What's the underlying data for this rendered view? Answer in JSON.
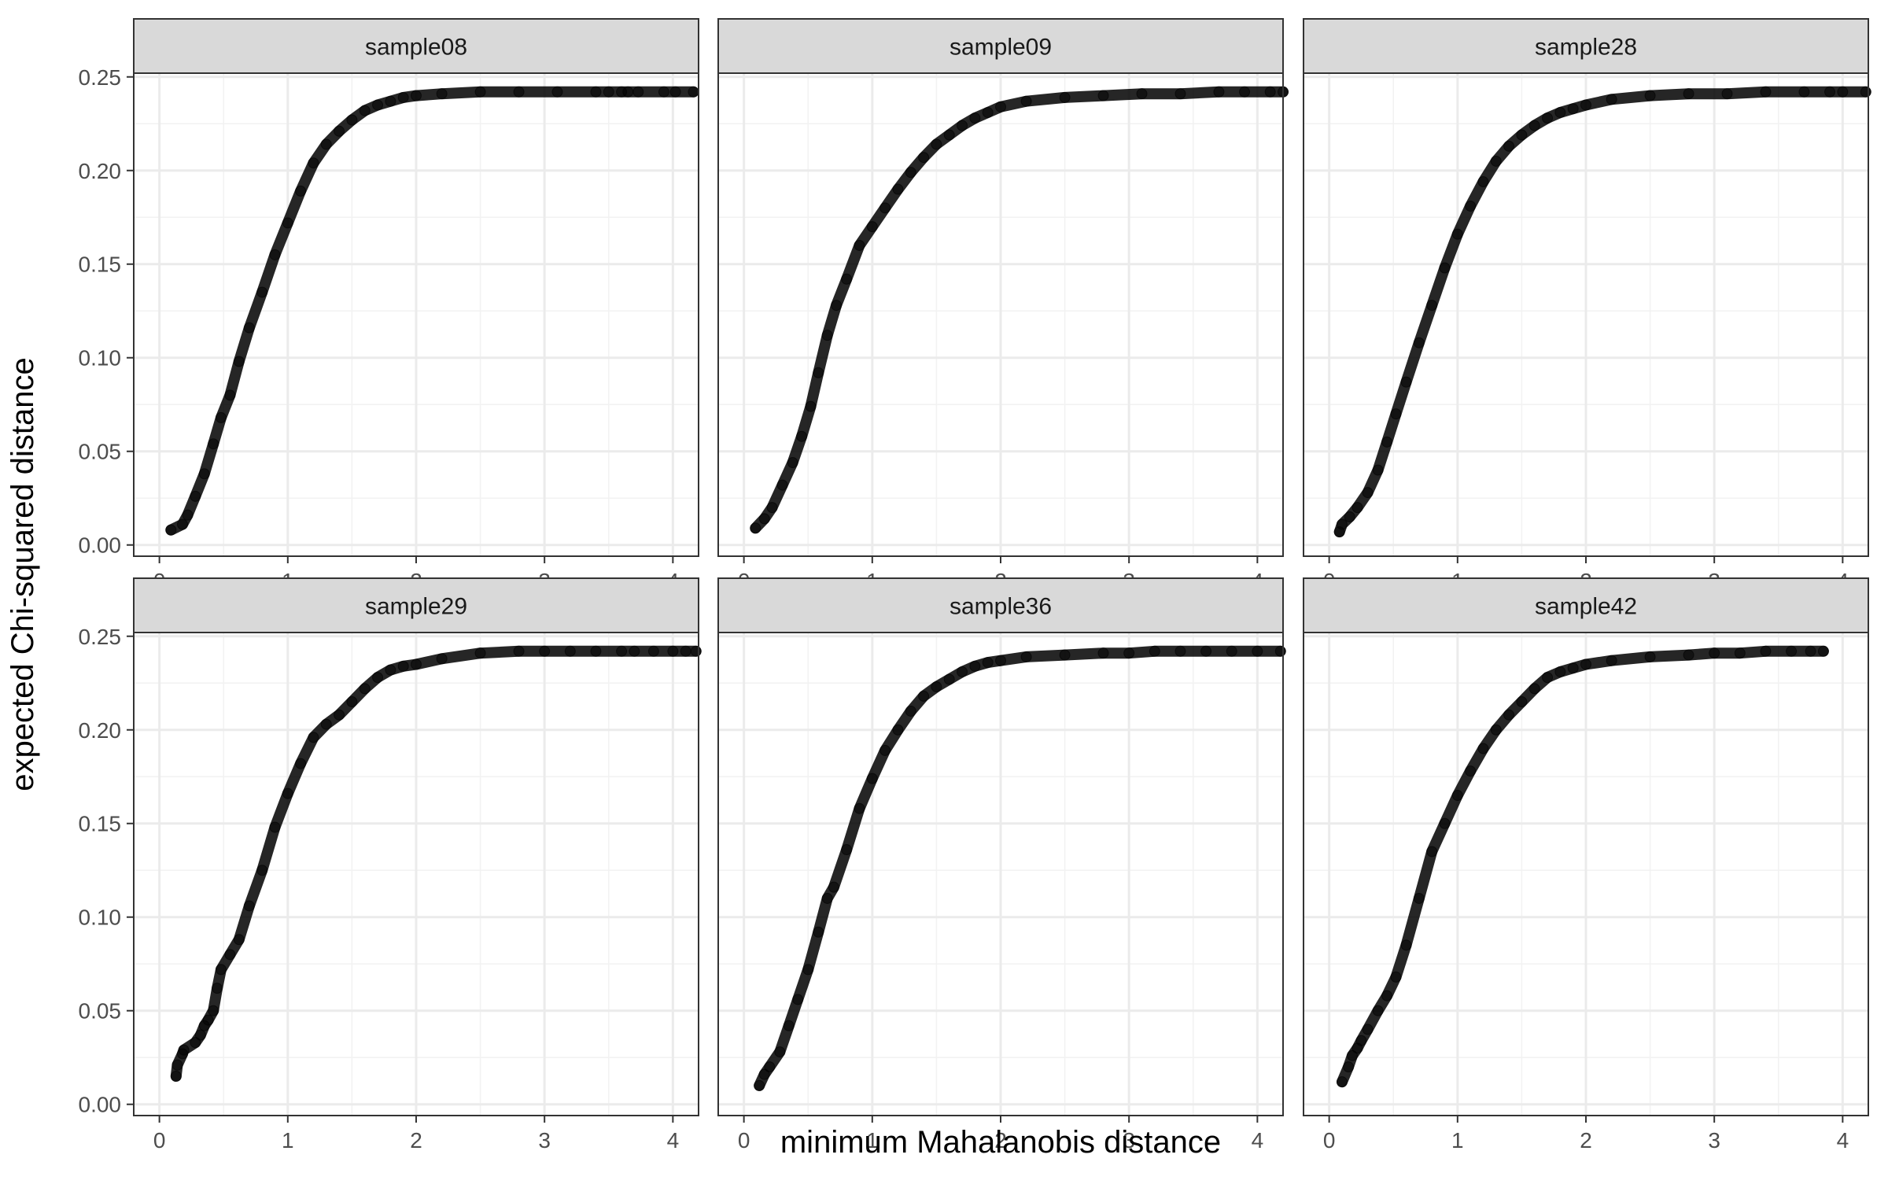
{
  "chart_data": {
    "type": "scatter",
    "layout": "facet-grid 2 rows x 3 columns",
    "xlabel": "minimum Mahalanobis distance",
    "ylabel": "expected Chi-squared distance",
    "xlim": [
      -0.2,
      4.2
    ],
    "ylim": [
      -0.006,
      0.252
    ],
    "x_ticks": [
      0,
      1,
      2,
      3,
      4
    ],
    "y_ticks": [
      0.0,
      0.05,
      0.1,
      0.15,
      0.2,
      0.25
    ],
    "x_tick_labels": [
      "0",
      "1",
      "2",
      "3",
      "4"
    ],
    "y_tick_labels": [
      "0.00",
      "0.05",
      "0.10",
      "0.15",
      "0.20",
      "0.25"
    ],
    "grid": true,
    "theme": "black-and-white with grey facet strips",
    "point_color": "#000000",
    "point_alpha": 0.5,
    "strip_fill": "#d9d9d9",
    "panels": [
      {
        "name": "sample08",
        "points": [
          [
            0.09,
            0.008
          ],
          [
            0.18,
            0.011
          ],
          [
            0.22,
            0.016
          ],
          [
            0.28,
            0.026
          ],
          [
            0.35,
            0.038
          ],
          [
            0.42,
            0.054
          ],
          [
            0.48,
            0.068
          ],
          [
            0.55,
            0.08
          ],
          [
            0.62,
            0.098
          ],
          [
            0.7,
            0.116
          ],
          [
            0.8,
            0.135
          ],
          [
            0.9,
            0.155
          ],
          [
            1.0,
            0.172
          ],
          [
            1.1,
            0.189
          ],
          [
            1.2,
            0.204
          ],
          [
            1.3,
            0.214
          ],
          [
            1.4,
            0.221
          ],
          [
            1.5,
            0.227
          ],
          [
            1.6,
            0.232
          ],
          [
            1.7,
            0.235
          ],
          [
            1.8,
            0.237
          ],
          [
            1.9,
            0.239
          ],
          [
            2.0,
            0.24
          ],
          [
            2.2,
            0.241
          ],
          [
            2.5,
            0.242
          ],
          [
            2.8,
            0.242
          ],
          [
            3.1,
            0.242
          ],
          [
            3.4,
            0.242
          ],
          [
            3.5,
            0.242
          ],
          [
            3.6,
            0.242
          ],
          [
            3.65,
            0.242
          ],
          [
            3.73,
            0.242
          ],
          [
            3.93,
            0.242
          ],
          [
            4.02,
            0.242
          ],
          [
            4.16,
            0.242
          ]
        ]
      },
      {
        "name": "sample09",
        "points": [
          [
            0.09,
            0.009
          ],
          [
            0.16,
            0.014
          ],
          [
            0.22,
            0.02
          ],
          [
            0.3,
            0.032
          ],
          [
            0.38,
            0.044
          ],
          [
            0.45,
            0.058
          ],
          [
            0.52,
            0.074
          ],
          [
            0.58,
            0.092
          ],
          [
            0.65,
            0.112
          ],
          [
            0.72,
            0.128
          ],
          [
            0.8,
            0.142
          ],
          [
            0.9,
            0.16
          ],
          [
            1.0,
            0.17
          ],
          [
            1.1,
            0.18
          ],
          [
            1.2,
            0.19
          ],
          [
            1.3,
            0.199
          ],
          [
            1.4,
            0.207
          ],
          [
            1.5,
            0.214
          ],
          [
            1.6,
            0.219
          ],
          [
            1.7,
            0.224
          ],
          [
            1.8,
            0.228
          ],
          [
            1.9,
            0.231
          ],
          [
            2.0,
            0.234
          ],
          [
            2.2,
            0.237
          ],
          [
            2.5,
            0.239
          ],
          [
            2.8,
            0.24
          ],
          [
            3.1,
            0.241
          ],
          [
            3.4,
            0.241
          ],
          [
            3.7,
            0.242
          ],
          [
            3.9,
            0.242
          ],
          [
            4.1,
            0.242
          ],
          [
            4.2,
            0.242
          ]
        ]
      },
      {
        "name": "sample28",
        "points": [
          [
            0.08,
            0.007
          ],
          [
            0.1,
            0.011
          ],
          [
            0.16,
            0.015
          ],
          [
            0.22,
            0.02
          ],
          [
            0.3,
            0.028
          ],
          [
            0.38,
            0.04
          ],
          [
            0.45,
            0.055
          ],
          [
            0.52,
            0.07
          ],
          [
            0.6,
            0.087
          ],
          [
            0.7,
            0.108
          ],
          [
            0.8,
            0.128
          ],
          [
            0.9,
            0.148
          ],
          [
            1.0,
            0.166
          ],
          [
            1.1,
            0.181
          ],
          [
            1.2,
            0.194
          ],
          [
            1.3,
            0.205
          ],
          [
            1.4,
            0.213
          ],
          [
            1.5,
            0.219
          ],
          [
            1.6,
            0.224
          ],
          [
            1.7,
            0.228
          ],
          [
            1.8,
            0.231
          ],
          [
            1.9,
            0.233
          ],
          [
            2.0,
            0.235
          ],
          [
            2.2,
            0.238
          ],
          [
            2.5,
            0.24
          ],
          [
            2.8,
            0.241
          ],
          [
            3.1,
            0.241
          ],
          [
            3.4,
            0.242
          ],
          [
            3.7,
            0.242
          ],
          [
            3.9,
            0.242
          ],
          [
            4.0,
            0.242
          ],
          [
            4.18,
            0.242
          ]
        ]
      },
      {
        "name": "sample29",
        "points": [
          [
            0.13,
            0.015
          ],
          [
            0.14,
            0.021
          ],
          [
            0.18,
            0.027
          ],
          [
            0.19,
            0.029
          ],
          [
            0.28,
            0.033
          ],
          [
            0.32,
            0.037
          ],
          [
            0.35,
            0.042
          ],
          [
            0.38,
            0.045
          ],
          [
            0.42,
            0.05
          ],
          [
            0.45,
            0.062
          ],
          [
            0.48,
            0.072
          ],
          [
            0.55,
            0.08
          ],
          [
            0.62,
            0.088
          ],
          [
            0.7,
            0.106
          ],
          [
            0.8,
            0.125
          ],
          [
            0.9,
            0.148
          ],
          [
            1.0,
            0.166
          ],
          [
            1.1,
            0.182
          ],
          [
            1.2,
            0.196
          ],
          [
            1.3,
            0.203
          ],
          [
            1.4,
            0.208
          ],
          [
            1.5,
            0.215
          ],
          [
            1.6,
            0.222
          ],
          [
            1.7,
            0.228
          ],
          [
            1.8,
            0.232
          ],
          [
            1.9,
            0.234
          ],
          [
            2.0,
            0.235
          ],
          [
            2.2,
            0.238
          ],
          [
            2.5,
            0.241
          ],
          [
            2.8,
            0.242
          ],
          [
            3.0,
            0.242
          ],
          [
            3.2,
            0.242
          ],
          [
            3.4,
            0.242
          ],
          [
            3.6,
            0.242
          ],
          [
            3.7,
            0.242
          ],
          [
            3.85,
            0.242
          ],
          [
            4.0,
            0.242
          ],
          [
            4.1,
            0.242
          ],
          [
            4.18,
            0.242
          ]
        ]
      },
      {
        "name": "sample36",
        "points": [
          [
            0.12,
            0.01
          ],
          [
            0.16,
            0.016
          ],
          [
            0.2,
            0.02
          ],
          [
            0.28,
            0.028
          ],
          [
            0.35,
            0.042
          ],
          [
            0.42,
            0.056
          ],
          [
            0.5,
            0.072
          ],
          [
            0.58,
            0.092
          ],
          [
            0.65,
            0.11
          ],
          [
            0.7,
            0.116
          ],
          [
            0.8,
            0.136
          ],
          [
            0.9,
            0.158
          ],
          [
            1.0,
            0.174
          ],
          [
            1.1,
            0.189
          ],
          [
            1.2,
            0.2
          ],
          [
            1.3,
            0.21
          ],
          [
            1.4,
            0.218
          ],
          [
            1.5,
            0.223
          ],
          [
            1.6,
            0.227
          ],
          [
            1.7,
            0.231
          ],
          [
            1.8,
            0.234
          ],
          [
            1.9,
            0.236
          ],
          [
            2.0,
            0.237
          ],
          [
            2.2,
            0.239
          ],
          [
            2.5,
            0.24
          ],
          [
            2.8,
            0.241
          ],
          [
            3.0,
            0.241
          ],
          [
            3.2,
            0.242
          ],
          [
            3.4,
            0.242
          ],
          [
            3.6,
            0.242
          ],
          [
            3.8,
            0.242
          ],
          [
            4.0,
            0.242
          ],
          [
            4.18,
            0.242
          ]
        ]
      },
      {
        "name": "sample42",
        "points": [
          [
            0.1,
            0.012
          ],
          [
            0.15,
            0.02
          ],
          [
            0.18,
            0.026
          ],
          [
            0.22,
            0.03
          ],
          [
            0.25,
            0.034
          ],
          [
            0.3,
            0.04
          ],
          [
            0.38,
            0.05
          ],
          [
            0.45,
            0.058
          ],
          [
            0.52,
            0.068
          ],
          [
            0.6,
            0.085
          ],
          [
            0.7,
            0.11
          ],
          [
            0.8,
            0.135
          ],
          [
            0.9,
            0.15
          ],
          [
            1.0,
            0.165
          ],
          [
            1.1,
            0.178
          ],
          [
            1.2,
            0.19
          ],
          [
            1.3,
            0.2
          ],
          [
            1.4,
            0.208
          ],
          [
            1.5,
            0.215
          ],
          [
            1.6,
            0.222
          ],
          [
            1.7,
            0.228
          ],
          [
            1.8,
            0.231
          ],
          [
            1.9,
            0.233
          ],
          [
            2.0,
            0.235
          ],
          [
            2.2,
            0.237
          ],
          [
            2.5,
            0.239
          ],
          [
            2.8,
            0.24
          ],
          [
            3.0,
            0.241
          ],
          [
            3.2,
            0.241
          ],
          [
            3.4,
            0.242
          ],
          [
            3.6,
            0.242
          ],
          [
            3.75,
            0.242
          ],
          [
            3.85,
            0.242
          ]
        ]
      }
    ]
  }
}
